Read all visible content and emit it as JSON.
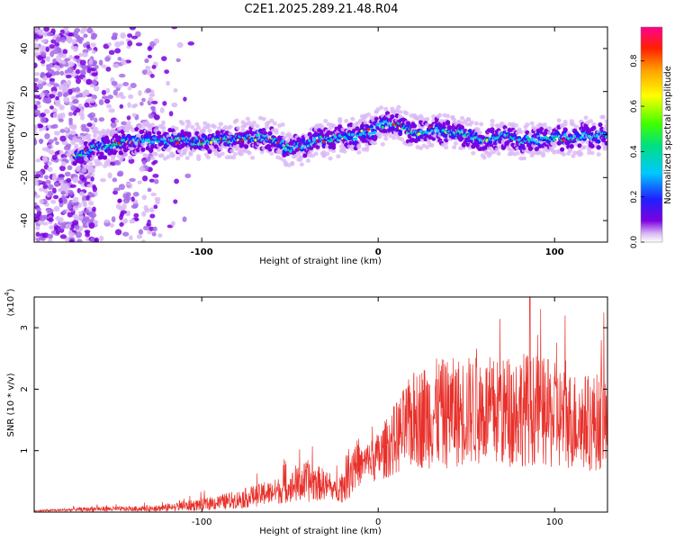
{
  "title": "C2E1.2025.289.21.48.R04",
  "chart_data": [
    {
      "type": "heatmap",
      "title": "C2E1.2025.289.21.48.R04",
      "xlabel": "Height of straight line (km)",
      "ylabel": "Frequency (Hz)",
      "xlim": [
        -195,
        130
      ],
      "ylim": [
        -50,
        50
      ],
      "xticks": [
        -100,
        0,
        100
      ],
      "yticks": [
        -40,
        -20,
        0,
        20,
        40
      ],
      "colorbar": {
        "label": "Normalized spectral amplitude",
        "range": [
          0,
          0.95
        ],
        "ticks": [
          "0.0",
          "0.2",
          "0.4",
          "0.6",
          "0.8"
        ],
        "colors": [
          "#ffffff",
          "#d9b8f5",
          "#7b00e0",
          "#2020ff",
          "#00c8ff",
          "#00e080",
          "#40ff00",
          "#ffff00",
          "#ffa000",
          "#ff2000",
          "#ff0090"
        ]
      },
      "ridge": {
        "x": [
          -170,
          -160,
          -140,
          -120,
          -100,
          -80,
          -60,
          -50,
          -40,
          -30,
          -20,
          -10,
          0,
          5,
          10,
          20,
          30,
          40,
          50,
          60,
          70,
          80,
          90,
          100,
          110,
          120,
          130
        ],
        "y": [
          -10,
          -6,
          -3,
          -3,
          -3,
          -2,
          -1,
          -7,
          -4,
          -2,
          -2,
          0,
          3,
          6,
          5,
          1,
          2,
          1,
          0,
          -2,
          -1,
          -3,
          -2,
          -2,
          -1,
          -1,
          0
        ]
      }
    },
    {
      "type": "line",
      "ylabel": "SNR (10 * v/v)",
      "yscale_label": "(x10",
      "yscale_exp": "4",
      "xlabel": "Height of straight line (km)",
      "xlim": [
        -195,
        130
      ],
      "ylim": [
        0,
        3.5
      ],
      "xticks": [
        -100,
        0,
        100
      ],
      "yticks": [
        1,
        2,
        3
      ],
      "series": [
        {
          "name": "SNR",
          "color": "#e8302a",
          "envelope_x": [
            -195,
            -160,
            -140,
            -120,
            -100,
            -80,
            -60,
            -50,
            -40,
            -30,
            -25,
            -20,
            -15,
            -10,
            0,
            10,
            20,
            30,
            40,
            50,
            60,
            70,
            80,
            90,
            100,
            110,
            120,
            130
          ],
          "envelope_mean": [
            0.02,
            0.05,
            0.05,
            0.07,
            0.12,
            0.2,
            0.32,
            0.4,
            0.5,
            0.45,
            0.35,
            0.45,
            0.75,
            0.75,
            0.9,
            1.2,
            1.5,
            1.6,
            1.6,
            1.65,
            1.65,
            1.6,
            1.7,
            1.65,
            1.55,
            1.5,
            1.45,
            1.5
          ],
          "envelope_spread": [
            0.01,
            0.04,
            0.04,
            0.06,
            0.1,
            0.15,
            0.2,
            0.25,
            0.35,
            0.25,
            0.15,
            0.3,
            0.5,
            0.3,
            0.4,
            0.6,
            0.8,
            0.9,
            0.9,
            0.9,
            0.9,
            0.9,
            0.95,
            0.9,
            0.9,
            0.8,
            0.8,
            0.8
          ],
          "peak": {
            "x": 86,
            "y": 3.5
          }
        }
      ]
    }
  ]
}
